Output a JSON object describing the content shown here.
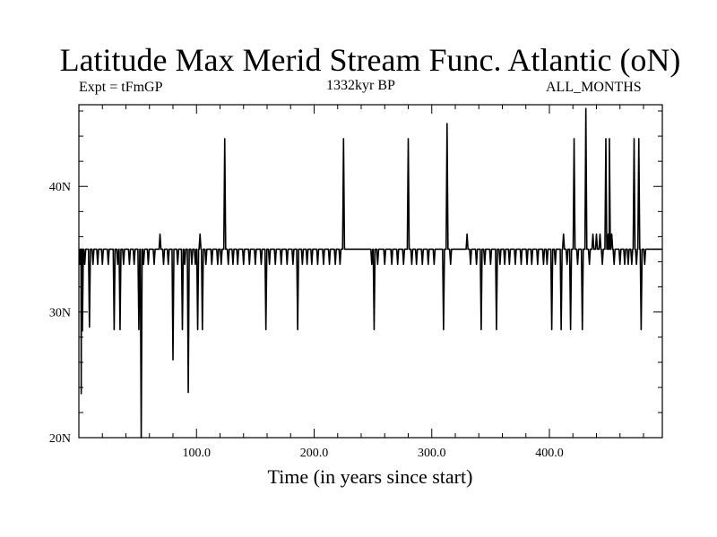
{
  "chart_data": {
    "type": "line",
    "title": "Latitude Max Merid Stream Func. Atlantic (oN)",
    "left_label": "Expt = tFmGP",
    "center_label": "1332kyr BP",
    "right_label": "ALL_MONTHS",
    "xlabel": "Time (in years since start)",
    "ylabel": "",
    "xlim": [
      0,
      496
    ],
    "ylim": [
      20,
      46.5
    ],
    "x_ticks": [
      100,
      200,
      300,
      400
    ],
    "x_tick_labels": [
      "100.0",
      "200.0",
      "300.0",
      "400.0"
    ],
    "y_ticks": [
      20,
      30,
      40
    ],
    "y_tick_labels": [
      "20N",
      "30N",
      "40N"
    ],
    "grid": false,
    "series": [
      {
        "name": "",
        "baseline": 35,
        "events": [
          [
            1,
            33.8
          ],
          [
            2,
            23.5
          ],
          [
            3,
            28.5
          ],
          [
            5,
            33.8
          ],
          [
            9,
            28.8
          ],
          [
            12,
            33.8
          ],
          [
            16,
            33.8
          ],
          [
            20,
            33.8
          ],
          [
            25,
            33.8
          ],
          [
            30,
            28.6
          ],
          [
            33,
            33.8
          ],
          [
            35,
            28.6
          ],
          [
            38,
            33.8
          ],
          [
            43,
            33.8
          ],
          [
            47,
            33.8
          ],
          [
            51,
            28.6
          ],
          [
            53,
            20.0
          ],
          [
            55,
            33.8
          ],
          [
            59,
            33.8
          ],
          [
            64,
            33.8
          ],
          [
            69,
            36.2
          ],
          [
            72,
            33.8
          ],
          [
            76,
            33.8
          ],
          [
            80,
            26.2
          ],
          [
            84,
            33.8
          ],
          [
            88,
            28.6
          ],
          [
            90,
            33.8
          ],
          [
            93,
            23.6
          ],
          [
            96,
            33.8
          ],
          [
            99,
            33.8
          ],
          [
            101,
            28.6
          ],
          [
            103,
            36.2
          ],
          [
            105,
            28.6
          ],
          [
            108,
            33.8
          ],
          [
            113,
            33.8
          ],
          [
            118,
            33.8
          ],
          [
            121,
            33.8
          ],
          [
            124,
            43.8
          ],
          [
            127,
            33.8
          ],
          [
            131,
            33.8
          ],
          [
            135,
            33.8
          ],
          [
            140,
            33.8
          ],
          [
            145,
            33.8
          ],
          [
            150,
            33.8
          ],
          [
            155,
            33.8
          ],
          [
            159,
            28.6
          ],
          [
            162,
            33.8
          ],
          [
            167,
            33.8
          ],
          [
            172,
            33.8
          ],
          [
            177,
            33.8
          ],
          [
            182,
            33.8
          ],
          [
            186,
            28.6
          ],
          [
            190,
            33.8
          ],
          [
            194,
            33.8
          ],
          [
            198,
            33.8
          ],
          [
            203,
            33.8
          ],
          [
            208,
            33.8
          ],
          [
            213,
            33.8
          ],
          [
            218,
            33.8
          ],
          [
            222,
            33.8
          ],
          [
            225,
            43.8
          ],
          [
            249,
            33.8
          ],
          [
            251,
            28.6
          ],
          [
            254,
            33.8
          ],
          [
            260,
            33.8
          ],
          [
            266,
            33.8
          ],
          [
            271,
            33.8
          ],
          [
            276,
            33.8
          ],
          [
            280,
            43.8
          ],
          [
            283,
            33.8
          ],
          [
            287,
            33.8
          ],
          [
            292,
            33.8
          ],
          [
            297,
            33.8
          ],
          [
            302,
            33.8
          ],
          [
            310,
            28.6
          ],
          [
            313,
            45.0
          ],
          [
            316,
            33.8
          ],
          [
            330,
            36.2
          ],
          [
            333,
            33.8
          ],
          [
            338,
            33.8
          ],
          [
            342,
            28.6
          ],
          [
            345,
            33.8
          ],
          [
            350,
            33.8
          ],
          [
            355,
            28.6
          ],
          [
            358,
            33.8
          ],
          [
            362,
            33.8
          ],
          [
            366,
            33.8
          ],
          [
            371,
            33.8
          ],
          [
            376,
            33.8
          ],
          [
            381,
            33.8
          ],
          [
            385,
            33.8
          ],
          [
            390,
            33.8
          ],
          [
            395,
            33.8
          ],
          [
            398,
            33.8
          ],
          [
            402,
            28.6
          ],
          [
            405,
            33.8
          ],
          [
            410,
            28.6
          ],
          [
            412,
            36.2
          ],
          [
            415,
            33.8
          ],
          [
            418,
            28.6
          ],
          [
            421,
            43.8
          ],
          [
            424,
            33.8
          ],
          [
            428,
            28.6
          ],
          [
            431,
            46.2
          ],
          [
            434,
            33.8
          ],
          [
            437,
            36.2
          ],
          [
            440,
            36.2
          ],
          [
            443,
            36.2
          ],
          [
            445,
            33.8
          ],
          [
            448,
            43.8
          ],
          [
            450,
            36.2
          ],
          [
            451,
            43.8
          ],
          [
            453,
            36.2
          ],
          [
            455,
            33.8
          ],
          [
            460,
            33.8
          ],
          [
            464,
            33.8
          ],
          [
            467,
            33.8
          ],
          [
            470,
            33.8
          ],
          [
            472,
            43.8
          ],
          [
            474,
            33.8
          ],
          [
            476,
            43.8
          ],
          [
            478,
            28.6
          ],
          [
            481,
            33.8
          ]
        ]
      }
    ]
  }
}
